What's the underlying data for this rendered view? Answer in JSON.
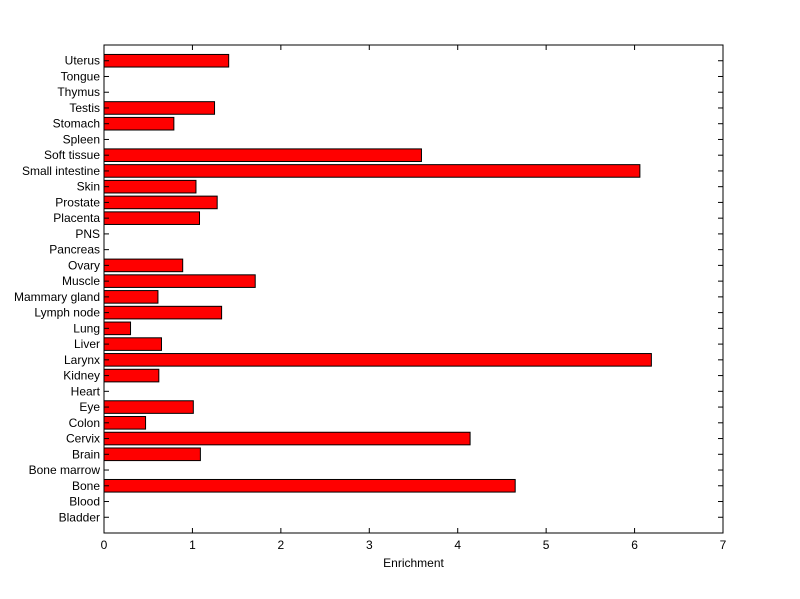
{
  "chart_data": {
    "type": "bar",
    "orientation": "horizontal",
    "title": "",
    "xlabel": "Enrichment",
    "ylabel": "",
    "xlim": [
      0,
      7
    ],
    "xticks": [
      0,
      1,
      2,
      3,
      4,
      5,
      6,
      7
    ],
    "grid": false,
    "legend": "none",
    "bar_color": "#ff0000",
    "edge_color": "#000000",
    "categories": [
      "Bladder",
      "Blood",
      "Bone",
      "Bone marrow",
      "Brain",
      "Cervix",
      "Colon",
      "Eye",
      "Heart",
      "Kidney",
      "Larynx",
      "Liver",
      "Lung",
      "Lymph node",
      "Mammary gland",
      "Muscle",
      "Ovary",
      "Pancreas",
      "PNS",
      "Placenta",
      "Prostate",
      "Skin",
      "Small intestine",
      "Soft tissue",
      "Spleen",
      "Stomach",
      "Testis",
      "Thymus",
      "Tongue",
      "Uterus"
    ],
    "values": [
      0,
      0,
      4.65,
      0,
      1.09,
      4.14,
      0.47,
      1.01,
      0,
      0.62,
      6.19,
      0.65,
      0.3,
      1.33,
      0.61,
      1.71,
      0.89,
      0,
      0,
      1.08,
      1.28,
      1.04,
      6.06,
      3.59,
      0,
      0.79,
      1.25,
      0,
      0,
      1.41
    ]
  }
}
